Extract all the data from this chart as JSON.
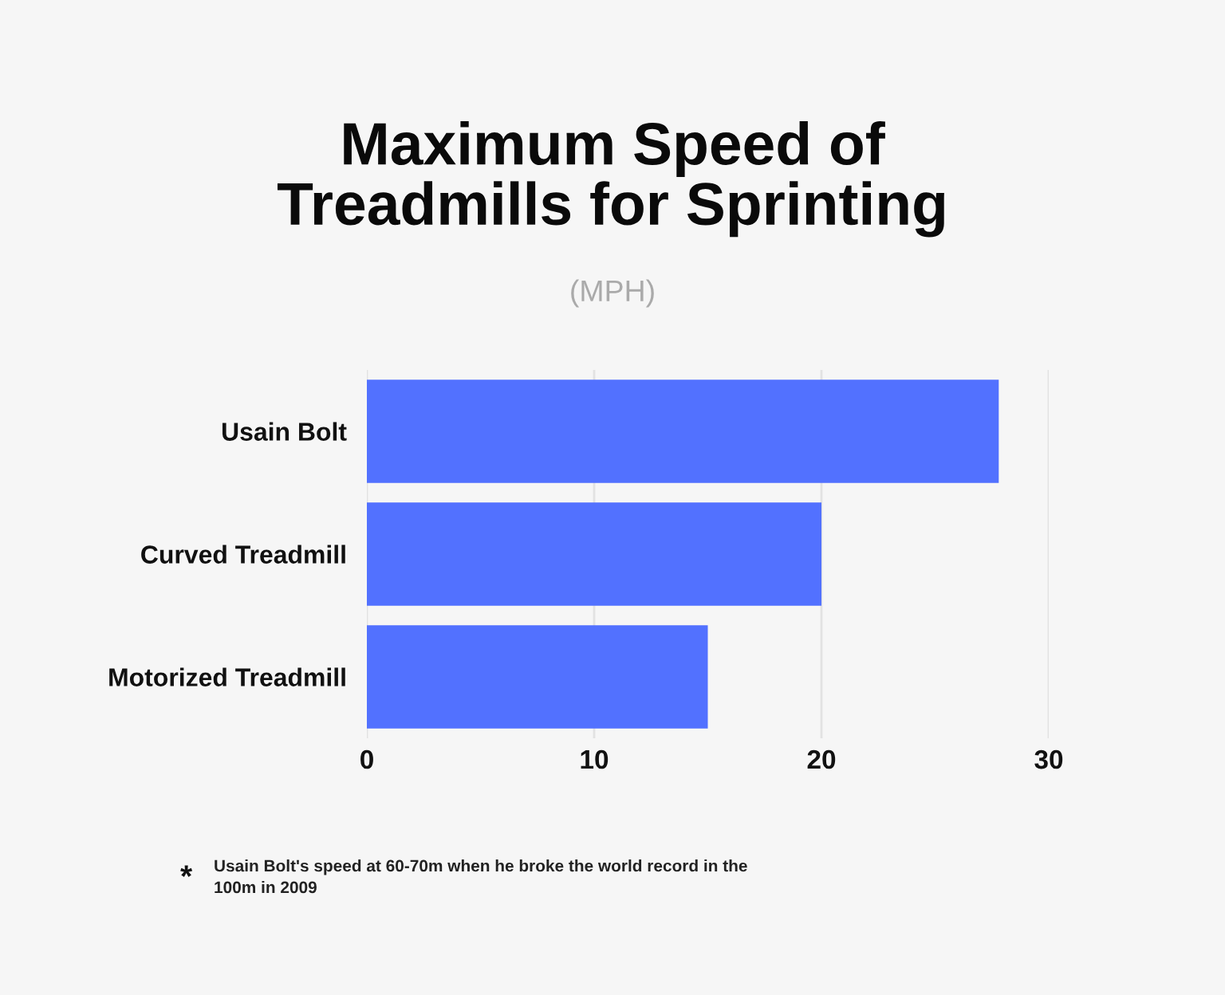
{
  "chart_data": {
    "type": "bar",
    "orientation": "horizontal",
    "title": "Maximum Speed of Treadmills for Sprinting",
    "subtitle": "(MPH)",
    "categories": [
      "Usain Bolt",
      "Curved Treadmill",
      "Motorized Treadmill"
    ],
    "values": [
      27.8,
      20,
      15
    ],
    "color": "#5271ff",
    "xlim": [
      0,
      30
    ],
    "xticks": [
      0,
      10,
      20,
      30
    ],
    "grid": "x",
    "annotations": [
      "*",
      "Usain Bolt's speed at 60-70m when he broke the world record in the 100m in 2009"
    ]
  }
}
